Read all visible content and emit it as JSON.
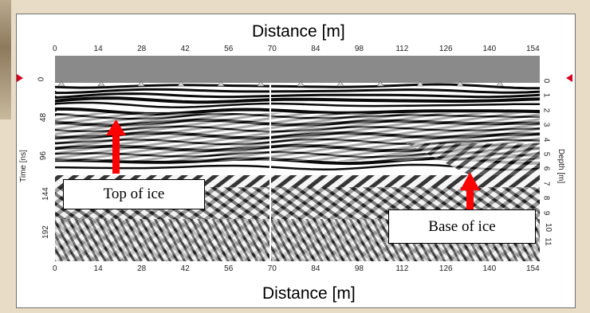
{
  "figure": {
    "top_axis_title": "Distance [m]",
    "bottom_axis_title": "Distance [m]",
    "left_axis_label": "Time [ns]",
    "right_axis_label": "Depth [m]",
    "distance_ticks": [
      "0",
      "14",
      "28",
      "42",
      "56",
      "70",
      "84",
      "98",
      "112",
      "126",
      "140",
      "154"
    ],
    "time_ticks": [
      "0",
      "48",
      "96",
      "144",
      "192"
    ],
    "depth_ticks": [
      "0",
      "1",
      "2",
      "3",
      "4",
      "5",
      "6",
      "7",
      "8",
      "9",
      "10",
      "11"
    ],
    "annotations": {
      "top": "Top of  ice",
      "base": "Base of ice"
    },
    "colors": {
      "arrow": "#ff0000",
      "marker": "#d4001c",
      "header_band": "#8a8a8a"
    }
  }
}
